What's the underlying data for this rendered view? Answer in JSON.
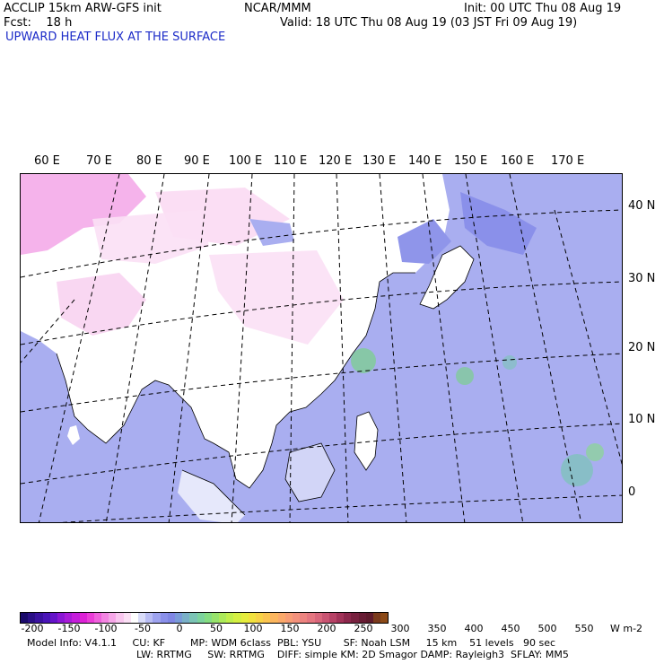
{
  "header": {
    "model": "ACCLIP 15km ARW-GFS init",
    "forecast": "Fcst:    18 h",
    "center": "NCAR/MMM",
    "init": "Init: 00 UTC Thu 08 Aug 19",
    "valid": "Valid: 18 UTC Thu 08 Aug 19 (03 JST Fri 09 Aug 19)",
    "field": "UPWARD HEAT FLUX AT THE SURFACE"
  },
  "map": {
    "lon_labels": [
      "60 E",
      "70 E",
      "80 E",
      "90 E",
      "100 E",
      "110 E",
      "120 E",
      "130 E",
      "140 E",
      "150 E",
      "160 E",
      "170 E"
    ],
    "lat_labels": [
      "40 N",
      "30 N",
      "20 N",
      "10 N",
      "0"
    ],
    "colors": {
      "ocean": "#a9aef0",
      "land": "#ffffff",
      "high_negative": "#f3a6e8",
      "positive": "#7ccf8f",
      "gridline": "#000000"
    }
  },
  "colorbar": {
    "labels": [
      "-200",
      "-150",
      "-100",
      "-50",
      "0",
      "50",
      "100",
      "150",
      "200",
      "250",
      "300",
      "350",
      "400",
      "450",
      "500",
      "550"
    ],
    "units": "W m-2",
    "colors": [
      "#1a0a6b",
      "#2a0f86",
      "#3a12a0",
      "#4a15b8",
      "#6514c9",
      "#8a16d4",
      "#a91ad8",
      "#c51ddb",
      "#dd22d6",
      "#eb3dd8",
      "#f061dd",
      "#f385e2",
      "#f6a6e8",
      "#f9c6ef",
      "#fbe0f5",
      "#ffffff",
      "#d9dcf9",
      "#b9bdf4",
      "#9ea3ef",
      "#8a90ea",
      "#7f86e4",
      "#7a9bd9",
      "#7ab0c8",
      "#7bc4b5",
      "#7cd39d",
      "#85dd82",
      "#97e36b",
      "#acea5a",
      "#c1ef4c",
      "#d5f042",
      "#e6ed3d",
      "#f2e23e",
      "#f8d346",
      "#fbc450",
      "#fcb65e",
      "#fba96a",
      "#f89d75",
      "#f3917c",
      "#ed8480",
      "#e57680",
      "#d9667b",
      "#c95472",
      "#b74266",
      "#a23359",
      "#8c274c",
      "#78213f",
      "#681c34",
      "#5e1a2c",
      "#7a3a1c",
      "#8c4a18"
    ]
  },
  "footer": {
    "line1": "Model Info: V4.1.1     CU: KF        MP: WDM 6class  PBL: YSU       SF: Noah LSM     15 km    51 levels   90 sec",
    "line2": "LW: RRTMG     SW: RRTMG    DIFF: simple KM: 2D Smagor DAMP: Rayleigh3  SFLAY: MM5"
  }
}
